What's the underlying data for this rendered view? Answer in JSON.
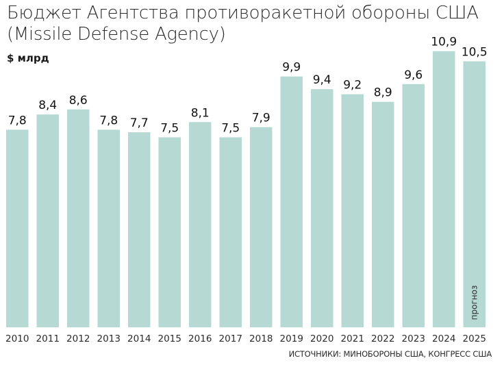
{
  "chart_data": {
    "type": "bar",
    "title_line1": "Бюджет Агентства противоракетной обороны США",
    "title_line2": "(Missile Defense Agency)",
    "ylabel": "$ млрд",
    "xlabel": "",
    "categories": [
      "2010",
      "2011",
      "2012",
      "2013",
      "2014",
      "2015",
      "2016",
      "2017",
      "2018",
      "2019",
      "2020",
      "2021",
      "2022",
      "2023",
      "2024",
      "2025"
    ],
    "values": [
      7.8,
      8.4,
      8.6,
      7.8,
      7.7,
      7.5,
      8.1,
      7.5,
      7.9,
      9.9,
      9.4,
      9.2,
      8.9,
      9.6,
      10.9,
      10.5
    ],
    "value_labels": [
      "7,8",
      "8,4",
      "8,6",
      "7,8",
      "7,7",
      "7,5",
      "8,1",
      "7,5",
      "7,9",
      "9,9",
      "9,4",
      "9,2",
      "8,9",
      "9,6",
      "10,9",
      "10,5"
    ],
    "ylim": [
      0,
      11
    ],
    "grid": false,
    "legend": "none",
    "annotations": [
      {
        "category": "2025",
        "text": "прогноз"
      }
    ],
    "source": "ИСТОЧНИКИ: МИНОБОРОНЫ США, КОНГРЕСС США"
  },
  "colors": {
    "bar": "#b7d9d4",
    "text": "#111111"
  }
}
